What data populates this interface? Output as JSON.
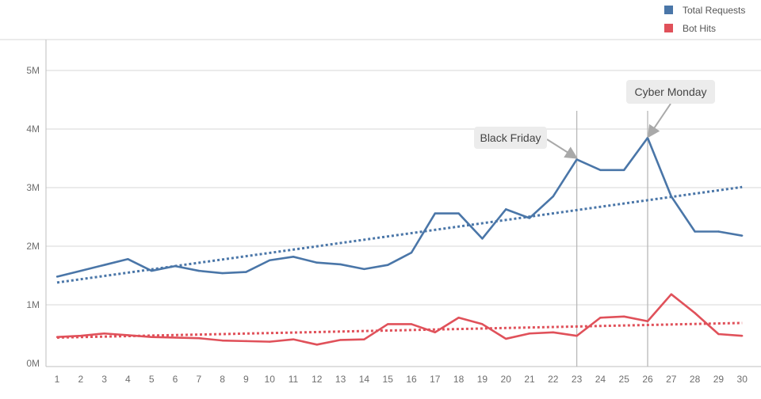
{
  "chart_data": {
    "type": "line",
    "title": "",
    "xlabel": "",
    "ylabel": "",
    "x": [
      1,
      2,
      3,
      4,
      5,
      6,
      7,
      8,
      9,
      10,
      11,
      12,
      13,
      14,
      15,
      16,
      17,
      18,
      19,
      20,
      21,
      22,
      23,
      24,
      25,
      26,
      27,
      28,
      29,
      30
    ],
    "x_tick_labels": [
      "1",
      "2",
      "3",
      "4",
      "5",
      "6",
      "7",
      "8",
      "9",
      "10",
      "11",
      "12",
      "13",
      "14",
      "15",
      "16",
      "17",
      "18",
      "19",
      "20",
      "21",
      "22",
      "23",
      "24",
      "25",
      "26",
      "27",
      "28",
      "29",
      "30"
    ],
    "ylim": [
      0,
      5000000
    ],
    "y_ticks": [
      0,
      1000000,
      2000000,
      3000000,
      4000000,
      5000000
    ],
    "y_tick_labels": [
      "0M",
      "1M",
      "2M",
      "3M",
      "4M",
      "5M"
    ],
    "grid": true,
    "legend_position": "top-right",
    "series": [
      {
        "name": "Total Requests",
        "color": "#4a76a8",
        "values": [
          1480000,
          1580000,
          1680000,
          1780000,
          1580000,
          1660000,
          1580000,
          1540000,
          1560000,
          1760000,
          1820000,
          1720000,
          1690000,
          1610000,
          1680000,
          1890000,
          2560000,
          2560000,
          2130000,
          2630000,
          2480000,
          2850000,
          3480000,
          3300000,
          3300000,
          3850000,
          2850000,
          2250000,
          2250000,
          2180000
        ],
        "trendline": [
          1380000,
          3010000
        ]
      },
      {
        "name": "Bot Hits",
        "color": "#e0515a",
        "values": [
          450000,
          470000,
          510000,
          480000,
          450000,
          440000,
          430000,
          390000,
          380000,
          370000,
          410000,
          320000,
          400000,
          410000,
          670000,
          670000,
          530000,
          780000,
          670000,
          420000,
          510000,
          530000,
          470000,
          780000,
          800000,
          720000,
          1180000,
          860000,
          500000,
          470000
        ],
        "trendline": [
          440000,
          690000
        ]
      }
    ],
    "annotations": [
      {
        "label": "Black Friday",
        "x": 23,
        "y": 3480000
      },
      {
        "label": "Cyber Monday",
        "x": 26,
        "y": 3850000
      }
    ]
  }
}
